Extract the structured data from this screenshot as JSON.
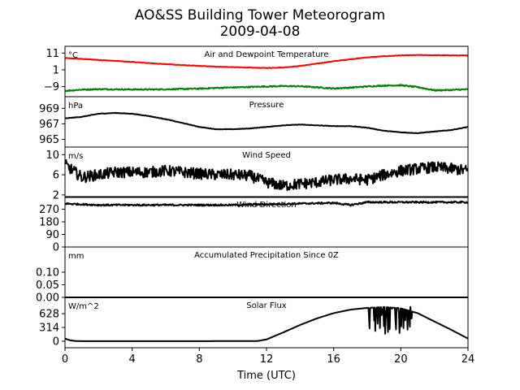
{
  "title_line1": "AO&SS Building Tower Meteorogram",
  "title_line2": "2009-04-08",
  "chart_data": {
    "type": "line",
    "title": "AO&SS Building Tower Meteorogram",
    "subtitle": "2009-04-08",
    "xlabel": "Time (UTC)",
    "xlim": [
      0,
      24
    ],
    "xticks": [
      0,
      4,
      8,
      12,
      16,
      20,
      24
    ],
    "panels": [
      {
        "key": "temp",
        "title": "Air and Dewpoint Temperature",
        "unit": "°C",
        "ylim": [
          -15,
          15
        ],
        "yticks": [
          11,
          1,
          -9
        ],
        "series": [
          {
            "name": "",
            "color": "#ff0000",
            "noise": 0.15,
            "x": [
              0,
              1,
              2,
              3,
              4,
              5,
              6,
              7,
              8,
              9,
              10,
              11,
              12,
              13,
              14,
              15,
              16,
              17,
              18,
              19,
              20,
              21,
              22,
              23,
              24
            ],
            "y": [
              8.0,
              7.5,
              6.9,
              6.3,
              5.7,
              5.0,
              4.4,
              3.8,
              3.3,
              2.9,
              2.6,
              2.3,
              2.1,
              2.4,
              3.3,
              4.7,
              6.1,
              7.3,
              8.4,
              9.1,
              9.6,
              9.8,
              9.7,
              9.6,
              9.5
            ]
          },
          {
            "name": "",
            "color": "#008000",
            "noise": 0.35,
            "x": [
              0,
              1,
              2,
              3,
              4,
              5,
              6,
              7,
              8,
              9,
              10,
              11,
              12,
              13,
              14,
              15,
              16,
              17,
              18,
              19,
              20,
              21,
              22,
              23,
              24
            ],
            "y": [
              -11.5,
              -10.8,
              -10.5,
              -10.6,
              -10.7,
              -10.7,
              -10.6,
              -10.4,
              -10.2,
              -9.8,
              -9.5,
              -9.2,
              -8.9,
              -8.7,
              -8.8,
              -9.4,
              -10.1,
              -9.6,
              -8.9,
              -8.4,
              -8.2,
              -9.3,
              -11.2,
              -11.0,
              -10.6
            ]
          }
        ]
      },
      {
        "key": "pressure",
        "title": "Pressure",
        "unit": "hPa",
        "ylim": [
          964.0,
          970.5
        ],
        "yticks": [
          969,
          967,
          965
        ],
        "series": [
          {
            "name": "",
            "color": "#000000",
            "noise": 0.03,
            "x": [
              0,
              1,
              2,
              3,
              4,
              5,
              6,
              7,
              8,
              9,
              10,
              11,
              12,
              13,
              14,
              15,
              16,
              17,
              18,
              19,
              20,
              21,
              22,
              23,
              24
            ],
            "y": [
              967.7,
              967.9,
              968.3,
              968.4,
              968.3,
              968.0,
              967.6,
              967.1,
              966.6,
              966.3,
              966.3,
              966.4,
              966.6,
              966.8,
              966.9,
              966.8,
              966.7,
              966.7,
              966.5,
              966.1,
              965.9,
              965.8,
              966.0,
              966.2,
              966.6
            ]
          }
        ]
      },
      {
        "key": "wind_speed",
        "title": "Wind Speed",
        "unit": "m/s",
        "ylim": [
          1.5,
          11.5
        ],
        "yticks": [
          10,
          6,
          2
        ],
        "series": [
          {
            "name": "",
            "color": "#000000",
            "noise": 1.1,
            "x": [
              0,
              1,
              2,
              3,
              4,
              5,
              6,
              7,
              8,
              9,
              10,
              11,
              12,
              13,
              14,
              15,
              16,
              17,
              18,
              19,
              20,
              21,
              22,
              23,
              24
            ],
            "y": [
              8.0,
              5.5,
              6.0,
              6.5,
              6.5,
              6.5,
              6.8,
              6.5,
              6.2,
              6.0,
              6.0,
              5.8,
              4.5,
              3.8,
              4.2,
              4.5,
              5.0,
              5.2,
              5.0,
              6.0,
              6.8,
              7.2,
              7.5,
              7.2,
              6.8
            ]
          }
        ]
      },
      {
        "key": "wind_dir",
        "title": "Wind Direction",
        "unit": "",
        "ylim": [
          0,
          360
        ],
        "yticks": [
          270,
          180,
          90,
          0
        ],
        "series": [
          {
            "name": "",
            "color": "#000000",
            "noise": 6,
            "x": [
              0,
              2,
              4,
              6,
              8,
              10,
              12,
              14,
              16,
              17,
              18,
              20,
              22,
              24
            ],
            "y": [
              310,
              300,
              300,
              300,
              300,
              300,
              305,
              310,
              315,
              300,
              320,
              320,
              320,
              320
            ]
          }
        ]
      },
      {
        "key": "precip",
        "title": "Accumulated Precipitation Since 0Z",
        "unit": "mm",
        "ylim": [
          0,
          0.2
        ],
        "yticks": [
          0.1,
          0.05,
          0.0
        ],
        "ytick_labels": [
          "0.10",
          "0.05",
          "0.00"
        ],
        "series": [
          {
            "name": "",
            "color": "#000000",
            "noise": 0,
            "x": [
              0,
              24
            ],
            "y": [
              0,
              0
            ]
          }
        ]
      },
      {
        "key": "solar",
        "title": "Solar Flux",
        "unit": "W/m^2",
        "ylim": [
          -150,
          1000
        ],
        "yticks": [
          628,
          314,
          0
        ],
        "series": [
          {
            "name": "",
            "color": "#000000",
            "noise": 0,
            "x": [
              0,
              0.3,
              0.6,
              1,
              4,
              8,
              11.5,
              12,
              13,
              14,
              15,
              16,
              17,
              18,
              19,
              20,
              21,
              22,
              23,
              24
            ],
            "y": [
              60,
              20,
              5,
              0,
              0,
              0,
              5,
              40,
              200,
              370,
              520,
              640,
              720,
              760,
              780,
              750,
              640,
              450,
              260,
              60
            ],
            "spikes": {
              "start": 18.1,
              "end": 20.7,
              "low": 130,
              "high": 800
            }
          }
        ]
      }
    ]
  }
}
